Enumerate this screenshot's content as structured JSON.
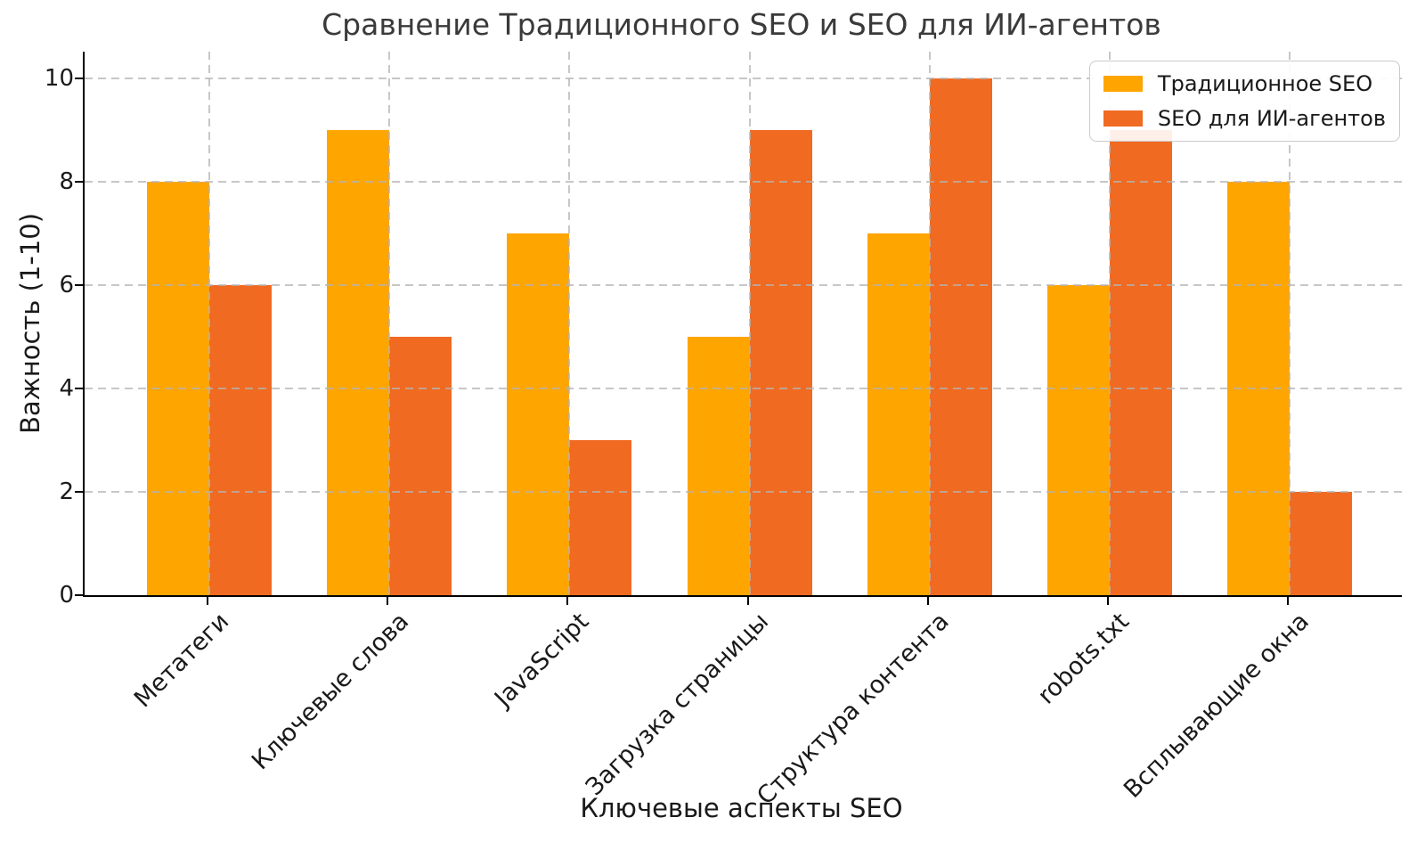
{
  "chart_data": {
    "type": "bar",
    "title": "Сравнение Традиционного SEO и SEO для ИИ-агентов",
    "xlabel": "Ключевые аспекты SEO",
    "ylabel": "Важность (1-10)",
    "categories": [
      "Метатеги",
      "Ключевые слова",
      "JavaScript",
      "Загрузка страницы",
      "Структура контента",
      "robots.txt",
      "Всплывающие окна"
    ],
    "series": [
      {
        "name": "Традиционное SEO",
        "color": "#FFA500",
        "values": [
          8,
          9,
          7,
          5,
          7,
          6,
          8
        ]
      },
      {
        "name": "SEO для ИИ-агентов",
        "color": "#F06A21",
        "values": [
          6,
          5,
          3,
          9,
          10,
          9,
          2
        ]
      }
    ],
    "yticks": [
      0,
      2,
      4,
      6,
      8,
      10
    ],
    "ylim": [
      0,
      10
    ],
    "grid": "dashed light-gray horizontal and vertical lines at ticks, drawn over bars",
    "legend_position": "upper right",
    "colors": {
      "grid": "#c8c8c8",
      "axis": "#000000",
      "text": "#1a1a1a"
    }
  }
}
